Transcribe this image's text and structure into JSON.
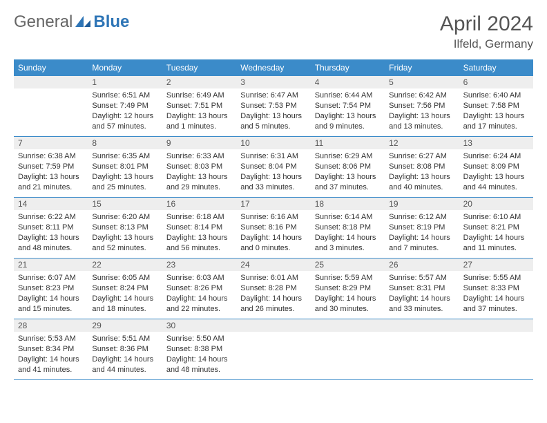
{
  "logo": {
    "general": "General",
    "blue": "Blue"
  },
  "header": {
    "title": "April 2024",
    "location": "Ilfeld, Germany"
  },
  "style": {
    "header_bg": "#3b8bc9",
    "header_fg": "#ffffff",
    "daynum_bg": "#eeeeee",
    "cell_border": "#3b8bc9",
    "month_color": "#555555",
    "body_color": "#333333",
    "logo_blue": "#2e75b6",
    "logo_gray": "#666666"
  },
  "weekdays": [
    "Sunday",
    "Monday",
    "Tuesday",
    "Wednesday",
    "Thursday",
    "Friday",
    "Saturday"
  ],
  "grid": {
    "leading_blanks": 0,
    "days": [
      {
        "n": "",
        "sunrise": "",
        "sunset": "",
        "daylight": ""
      },
      {
        "n": "1",
        "sunrise": "Sunrise: 6:51 AM",
        "sunset": "Sunset: 7:49 PM",
        "daylight": "Daylight: 12 hours and 57 minutes."
      },
      {
        "n": "2",
        "sunrise": "Sunrise: 6:49 AM",
        "sunset": "Sunset: 7:51 PM",
        "daylight": "Daylight: 13 hours and 1 minutes."
      },
      {
        "n": "3",
        "sunrise": "Sunrise: 6:47 AM",
        "sunset": "Sunset: 7:53 PM",
        "daylight": "Daylight: 13 hours and 5 minutes."
      },
      {
        "n": "4",
        "sunrise": "Sunrise: 6:44 AM",
        "sunset": "Sunset: 7:54 PM",
        "daylight": "Daylight: 13 hours and 9 minutes."
      },
      {
        "n": "5",
        "sunrise": "Sunrise: 6:42 AM",
        "sunset": "Sunset: 7:56 PM",
        "daylight": "Daylight: 13 hours and 13 minutes."
      },
      {
        "n": "6",
        "sunrise": "Sunrise: 6:40 AM",
        "sunset": "Sunset: 7:58 PM",
        "daylight": "Daylight: 13 hours and 17 minutes."
      },
      {
        "n": "7",
        "sunrise": "Sunrise: 6:38 AM",
        "sunset": "Sunset: 7:59 PM",
        "daylight": "Daylight: 13 hours and 21 minutes."
      },
      {
        "n": "8",
        "sunrise": "Sunrise: 6:35 AM",
        "sunset": "Sunset: 8:01 PM",
        "daylight": "Daylight: 13 hours and 25 minutes."
      },
      {
        "n": "9",
        "sunrise": "Sunrise: 6:33 AM",
        "sunset": "Sunset: 8:03 PM",
        "daylight": "Daylight: 13 hours and 29 minutes."
      },
      {
        "n": "10",
        "sunrise": "Sunrise: 6:31 AM",
        "sunset": "Sunset: 8:04 PM",
        "daylight": "Daylight: 13 hours and 33 minutes."
      },
      {
        "n": "11",
        "sunrise": "Sunrise: 6:29 AM",
        "sunset": "Sunset: 8:06 PM",
        "daylight": "Daylight: 13 hours and 37 minutes."
      },
      {
        "n": "12",
        "sunrise": "Sunrise: 6:27 AM",
        "sunset": "Sunset: 8:08 PM",
        "daylight": "Daylight: 13 hours and 40 minutes."
      },
      {
        "n": "13",
        "sunrise": "Sunrise: 6:24 AM",
        "sunset": "Sunset: 8:09 PM",
        "daylight": "Daylight: 13 hours and 44 minutes."
      },
      {
        "n": "14",
        "sunrise": "Sunrise: 6:22 AM",
        "sunset": "Sunset: 8:11 PM",
        "daylight": "Daylight: 13 hours and 48 minutes."
      },
      {
        "n": "15",
        "sunrise": "Sunrise: 6:20 AM",
        "sunset": "Sunset: 8:13 PM",
        "daylight": "Daylight: 13 hours and 52 minutes."
      },
      {
        "n": "16",
        "sunrise": "Sunrise: 6:18 AM",
        "sunset": "Sunset: 8:14 PM",
        "daylight": "Daylight: 13 hours and 56 minutes."
      },
      {
        "n": "17",
        "sunrise": "Sunrise: 6:16 AM",
        "sunset": "Sunset: 8:16 PM",
        "daylight": "Daylight: 14 hours and 0 minutes."
      },
      {
        "n": "18",
        "sunrise": "Sunrise: 6:14 AM",
        "sunset": "Sunset: 8:18 PM",
        "daylight": "Daylight: 14 hours and 3 minutes."
      },
      {
        "n": "19",
        "sunrise": "Sunrise: 6:12 AM",
        "sunset": "Sunset: 8:19 PM",
        "daylight": "Daylight: 14 hours and 7 minutes."
      },
      {
        "n": "20",
        "sunrise": "Sunrise: 6:10 AM",
        "sunset": "Sunset: 8:21 PM",
        "daylight": "Daylight: 14 hours and 11 minutes."
      },
      {
        "n": "21",
        "sunrise": "Sunrise: 6:07 AM",
        "sunset": "Sunset: 8:23 PM",
        "daylight": "Daylight: 14 hours and 15 minutes."
      },
      {
        "n": "22",
        "sunrise": "Sunrise: 6:05 AM",
        "sunset": "Sunset: 8:24 PM",
        "daylight": "Daylight: 14 hours and 18 minutes."
      },
      {
        "n": "23",
        "sunrise": "Sunrise: 6:03 AM",
        "sunset": "Sunset: 8:26 PM",
        "daylight": "Daylight: 14 hours and 22 minutes."
      },
      {
        "n": "24",
        "sunrise": "Sunrise: 6:01 AM",
        "sunset": "Sunset: 8:28 PM",
        "daylight": "Daylight: 14 hours and 26 minutes."
      },
      {
        "n": "25",
        "sunrise": "Sunrise: 5:59 AM",
        "sunset": "Sunset: 8:29 PM",
        "daylight": "Daylight: 14 hours and 30 minutes."
      },
      {
        "n": "26",
        "sunrise": "Sunrise: 5:57 AM",
        "sunset": "Sunset: 8:31 PM",
        "daylight": "Daylight: 14 hours and 33 minutes."
      },
      {
        "n": "27",
        "sunrise": "Sunrise: 5:55 AM",
        "sunset": "Sunset: 8:33 PM",
        "daylight": "Daylight: 14 hours and 37 minutes."
      },
      {
        "n": "28",
        "sunrise": "Sunrise: 5:53 AM",
        "sunset": "Sunset: 8:34 PM",
        "daylight": "Daylight: 14 hours and 41 minutes."
      },
      {
        "n": "29",
        "sunrise": "Sunrise: 5:51 AM",
        "sunset": "Sunset: 8:36 PM",
        "daylight": "Daylight: 14 hours and 44 minutes."
      },
      {
        "n": "30",
        "sunrise": "Sunrise: 5:50 AM",
        "sunset": "Sunset: 8:38 PM",
        "daylight": "Daylight: 14 hours and 48 minutes."
      },
      {
        "n": "",
        "sunrise": "",
        "sunset": "",
        "daylight": ""
      },
      {
        "n": "",
        "sunrise": "",
        "sunset": "",
        "daylight": ""
      },
      {
        "n": "",
        "sunrise": "",
        "sunset": "",
        "daylight": ""
      },
      {
        "n": "",
        "sunrise": "",
        "sunset": "",
        "daylight": ""
      }
    ]
  }
}
